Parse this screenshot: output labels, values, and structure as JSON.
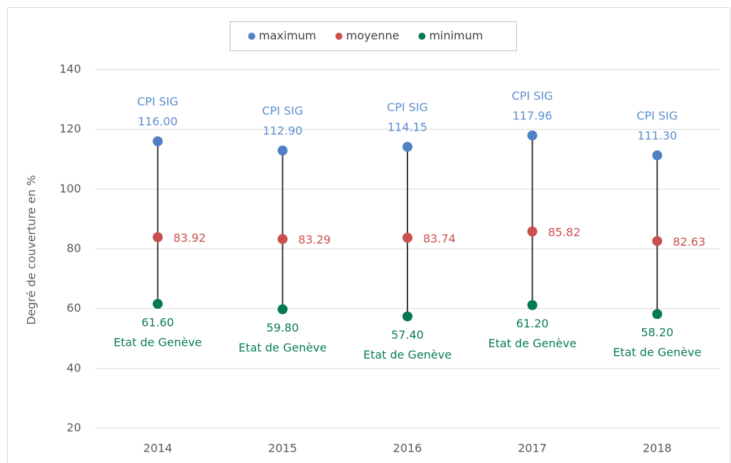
{
  "chart_data": {
    "type": "dumbbell",
    "y_axis_label": "Degré de couverture en %",
    "categories": [
      "2014",
      "2015",
      "2016",
      "2017",
      "2018"
    ],
    "series": [
      {
        "name": "maximum",
        "color": "#4f81c4",
        "label_color": "#5b8fd0",
        "label_position": "above",
        "values": [
          116.0,
          112.9,
          114.15,
          117.96,
          111.3
        ],
        "value_labels": [
          "116.00",
          "112.90",
          "114.15",
          "117.96",
          "111.30"
        ],
        "point_labels": [
          "CPI SIG",
          "CPI SIG",
          "CPI SIG",
          "CPI SIG",
          "CPI SIG"
        ]
      },
      {
        "name": "moyenne",
        "color": "#c9504d",
        "label_color": "#c9504d",
        "label_position": "right",
        "values": [
          83.92,
          83.29,
          83.74,
          85.82,
          82.63
        ],
        "value_labels": [
          "83.92",
          "83.29",
          "83.74",
          "85.82",
          "82.63"
        ]
      },
      {
        "name": "minimum",
        "color": "#047a50",
        "label_color": "#0a7d52",
        "label_position": "below",
        "values": [
          61.6,
          59.8,
          57.4,
          61.2,
          58.2
        ],
        "value_labels": [
          "61.60",
          "59.80",
          "57.40",
          "61.20",
          "58.20"
        ],
        "point_labels": [
          "Etat de Genève",
          "Etat de Genève",
          "Etat de Genève",
          "Etat de Genève",
          "Etat de Genève"
        ]
      }
    ],
    "line_color": "#3a3a3a",
    "ylim": [
      20,
      140
    ],
    "yticks": [
      20,
      40,
      60,
      80,
      100,
      120,
      140
    ],
    "grid": true,
    "legend": "top"
  }
}
